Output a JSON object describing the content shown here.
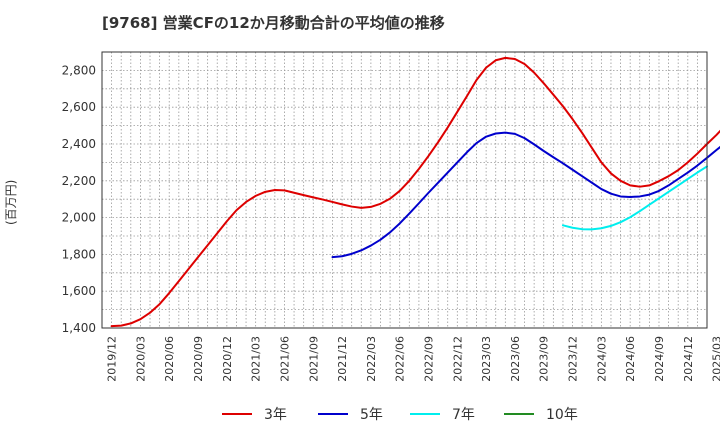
{
  "chart_data": {
    "type": "line",
    "title": "[9768]  営業CFの12か月移動合計の平均値の推移",
    "ylabel": "(百万円)",
    "xlabel": "",
    "ylim": [
      1400,
      2900
    ],
    "yticks": [
      1400,
      1600,
      1800,
      2000,
      2200,
      2400,
      2600,
      2800
    ],
    "ytick_labels": [
      "1,400",
      "1,600",
      "1,800",
      "2,000",
      "2,200",
      "2,400",
      "2,600",
      "2,800"
    ],
    "xticks": [
      "2019/12",
      "2020/03",
      "2020/06",
      "2020/09",
      "2020/12",
      "2021/03",
      "2021/06",
      "2021/09",
      "2021/12",
      "2022/03",
      "2022/06",
      "2022/09",
      "2022/12",
      "2023/03",
      "2023/06",
      "2023/09",
      "2023/12",
      "2024/03",
      "2024/06",
      "2024/09",
      "2024/12",
      "2025/03"
    ],
    "grid": true,
    "legend_position": "bottom",
    "series": [
      {
        "name": "3年",
        "color": "#dd0000",
        "points": [
          [
            "2019/12",
            1410
          ],
          [
            "2020/01",
            1413
          ],
          [
            "2020/02",
            1425
          ],
          [
            "2020/03",
            1448
          ],
          [
            "2020/04",
            1483
          ],
          [
            "2020/05",
            1530
          ],
          [
            "2020/06",
            1590
          ],
          [
            "2020/07",
            1655
          ],
          [
            "2020/08",
            1720
          ],
          [
            "2020/09",
            1785
          ],
          [
            "2020/10",
            1850
          ],
          [
            "2020/11",
            1915
          ],
          [
            "2020/12",
            1980
          ],
          [
            "2021/01",
            2040
          ],
          [
            "2021/02",
            2085
          ],
          [
            "2021/03",
            2118
          ],
          [
            "2021/04",
            2140
          ],
          [
            "2021/05",
            2150
          ],
          [
            "2021/06",
            2148
          ],
          [
            "2021/07",
            2135
          ],
          [
            "2021/08",
            2122
          ],
          [
            "2021/09",
            2110
          ],
          [
            "2021/10",
            2098
          ],
          [
            "2021/11",
            2085
          ],
          [
            "2021/12",
            2072
          ],
          [
            "2022/01",
            2060
          ],
          [
            "2022/02",
            2053
          ],
          [
            "2022/03",
            2058
          ],
          [
            "2022/04",
            2075
          ],
          [
            "2022/05",
            2103
          ],
          [
            "2022/06",
            2145
          ],
          [
            "2022/07",
            2200
          ],
          [
            "2022/08",
            2265
          ],
          [
            "2022/09",
            2335
          ],
          [
            "2022/10",
            2410
          ],
          [
            "2022/11",
            2490
          ],
          [
            "2022/12",
            2575
          ],
          [
            "2023/01",
            2660
          ],
          [
            "2023/02",
            2748
          ],
          [
            "2023/03",
            2815
          ],
          [
            "2023/04",
            2855
          ],
          [
            "2023/05",
            2868
          ],
          [
            "2023/06",
            2862
          ],
          [
            "2023/07",
            2835
          ],
          [
            "2023/08",
            2788
          ],
          [
            "2023/09",
            2730
          ],
          [
            "2023/10",
            2668
          ],
          [
            "2023/11",
            2605
          ],
          [
            "2023/12",
            2535
          ],
          [
            "2024/01",
            2460
          ],
          [
            "2024/02",
            2380
          ],
          [
            "2024/03",
            2300
          ],
          [
            "2024/04",
            2240
          ],
          [
            "2024/05",
            2200
          ],
          [
            "2024/06",
            2175
          ],
          [
            "2024/07",
            2168
          ],
          [
            "2024/08",
            2175
          ],
          [
            "2024/09",
            2198
          ],
          [
            "2024/10",
            2225
          ],
          [
            "2024/11",
            2258
          ],
          [
            "2024/12",
            2300
          ],
          [
            "2025/01",
            2348
          ],
          [
            "2025/02",
            2400
          ],
          [
            "2025/03",
            2450
          ],
          [
            "2025/04",
            2505
          ]
        ]
      },
      {
        "name": "5年",
        "color": "#0000cc",
        "points": [
          [
            "2021/11",
            1785
          ],
          [
            "2021/12",
            1790
          ],
          [
            "2022/01",
            1803
          ],
          [
            "2022/02",
            1822
          ],
          [
            "2022/03",
            1848
          ],
          [
            "2022/04",
            1880
          ],
          [
            "2022/05",
            1920
          ],
          [
            "2022/06",
            1968
          ],
          [
            "2022/07",
            2022
          ],
          [
            "2022/08",
            2078
          ],
          [
            "2022/09",
            2135
          ],
          [
            "2022/10",
            2190
          ],
          [
            "2022/11",
            2245
          ],
          [
            "2022/12",
            2300
          ],
          [
            "2023/01",
            2355
          ],
          [
            "2023/02",
            2405
          ],
          [
            "2023/03",
            2440
          ],
          [
            "2023/04",
            2457
          ],
          [
            "2023/05",
            2462
          ],
          [
            "2023/06",
            2455
          ],
          [
            "2023/07",
            2432
          ],
          [
            "2023/08",
            2398
          ],
          [
            "2023/09",
            2362
          ],
          [
            "2023/10",
            2328
          ],
          [
            "2023/11",
            2295
          ],
          [
            "2023/12",
            2260
          ],
          [
            "2024/01",
            2225
          ],
          [
            "2024/02",
            2190
          ],
          [
            "2024/03",
            2155
          ],
          [
            "2024/04",
            2130
          ],
          [
            "2024/05",
            2115
          ],
          [
            "2024/06",
            2112
          ],
          [
            "2024/07",
            2115
          ],
          [
            "2024/08",
            2125
          ],
          [
            "2024/09",
            2145
          ],
          [
            "2024/10",
            2175
          ],
          [
            "2024/11",
            2210
          ],
          [
            "2024/12",
            2245
          ],
          [
            "2025/01",
            2283
          ],
          [
            "2025/02",
            2325
          ],
          [
            "2025/03",
            2368
          ],
          [
            "2025/04",
            2410
          ],
          [
            "2025/05",
            2455
          ]
        ]
      },
      {
        "name": "7年",
        "color": "#00eeee",
        "points": [
          [
            "2023/11",
            1958
          ],
          [
            "2023/12",
            1945
          ],
          [
            "2024/01",
            1937
          ],
          [
            "2024/02",
            1936
          ],
          [
            "2024/03",
            1942
          ],
          [
            "2024/04",
            1955
          ],
          [
            "2024/05",
            1975
          ],
          [
            "2024/06",
            2002
          ],
          [
            "2024/07",
            2035
          ],
          [
            "2024/08",
            2070
          ],
          [
            "2024/09",
            2105
          ],
          [
            "2024/10",
            2140
          ],
          [
            "2024/11",
            2175
          ],
          [
            "2024/12",
            2210
          ],
          [
            "2025/01",
            2245
          ],
          [
            "2025/02",
            2278
          ]
        ]
      },
      {
        "name": "10年",
        "color": "#228b22",
        "points": []
      }
    ]
  }
}
